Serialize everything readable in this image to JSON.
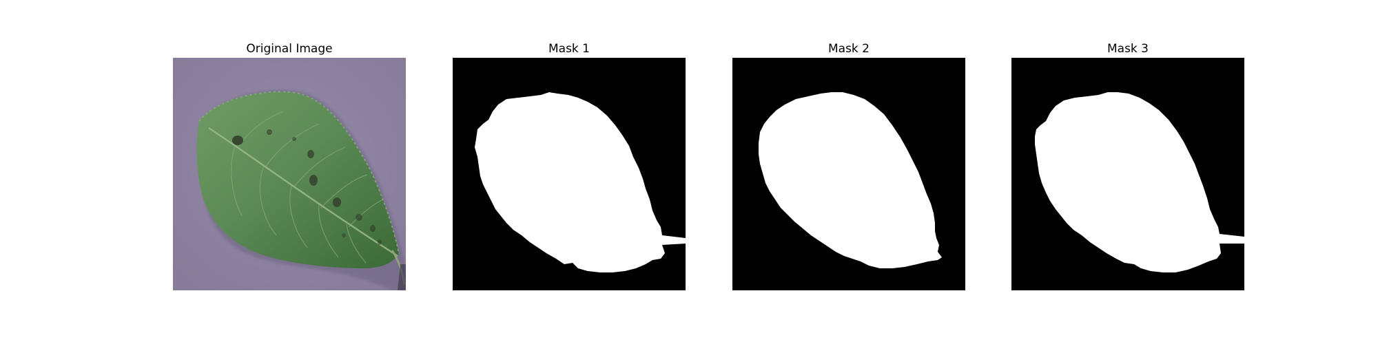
{
  "figure": {
    "panels": [
      {
        "title": "Original Image"
      },
      {
        "title": "Mask 1"
      },
      {
        "title": "Mask 2"
      },
      {
        "title": "Mask 3"
      }
    ]
  },
  "colors": {
    "background": "#ffffff",
    "mask_background": "#000000",
    "mask_foreground": "#ffffff",
    "photo_backdrop": "#8c84a0",
    "leaf_dark": "#3f6b3a",
    "leaf_mid": "#5c8a56",
    "leaf_light": "#7ea372",
    "spots": "#2f3a2a"
  }
}
